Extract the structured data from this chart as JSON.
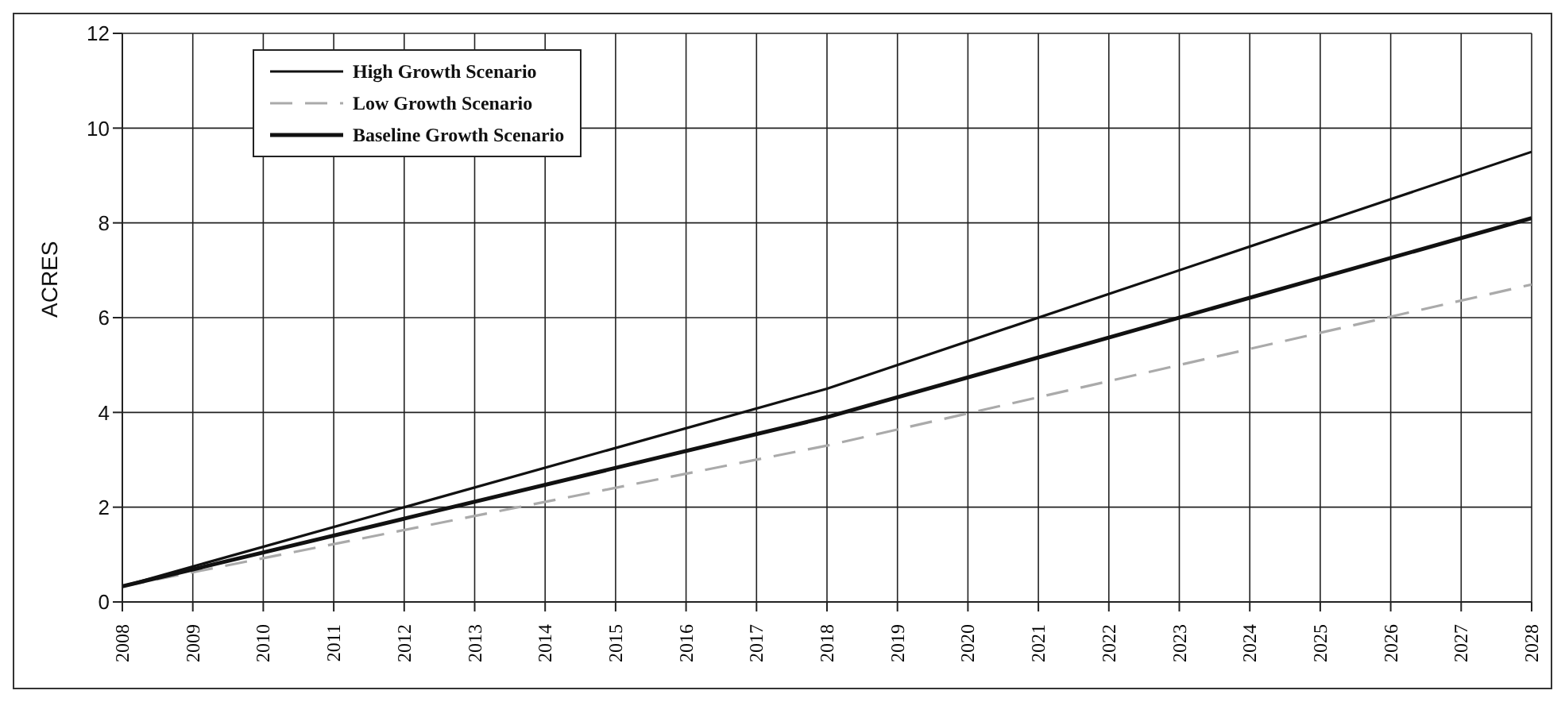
{
  "chart_data": {
    "type": "line",
    "ylabel": "ACRES",
    "xlim": [
      2008,
      2028
    ],
    "xticks": [
      2008,
      2009,
      2010,
      2011,
      2012,
      2013,
      2014,
      2015,
      2016,
      2017,
      2018,
      2019,
      2020,
      2021,
      2022,
      2023,
      2024,
      2025,
      2026,
      2027,
      2028
    ],
    "ylim": [
      0,
      12
    ],
    "yticks": [
      0,
      2,
      4,
      6,
      8,
      10,
      12
    ],
    "grid": true,
    "legend": "top left",
    "marker": "none",
    "series": [
      {
        "name": "High Growth Scenario",
        "color": "#111111",
        "line_style": "solid",
        "x": [
          2008,
          2018,
          2028
        ],
        "values": [
          0.33,
          4.5,
          9.5
        ]
      },
      {
        "name": "Low Growth Scenario",
        "color": "#aaaaaa",
        "line_style": "dashed",
        "x": [
          2008,
          2018,
          2028
        ],
        "values": [
          0.33,
          3.3,
          6.7
        ]
      },
      {
        "name": "Baseline Growth Scenario",
        "color": "#111111",
        "line_style": "solid",
        "x": [
          2008,
          2018,
          2028
        ],
        "values": [
          0.33,
          3.9,
          8.1
        ]
      }
    ]
  }
}
